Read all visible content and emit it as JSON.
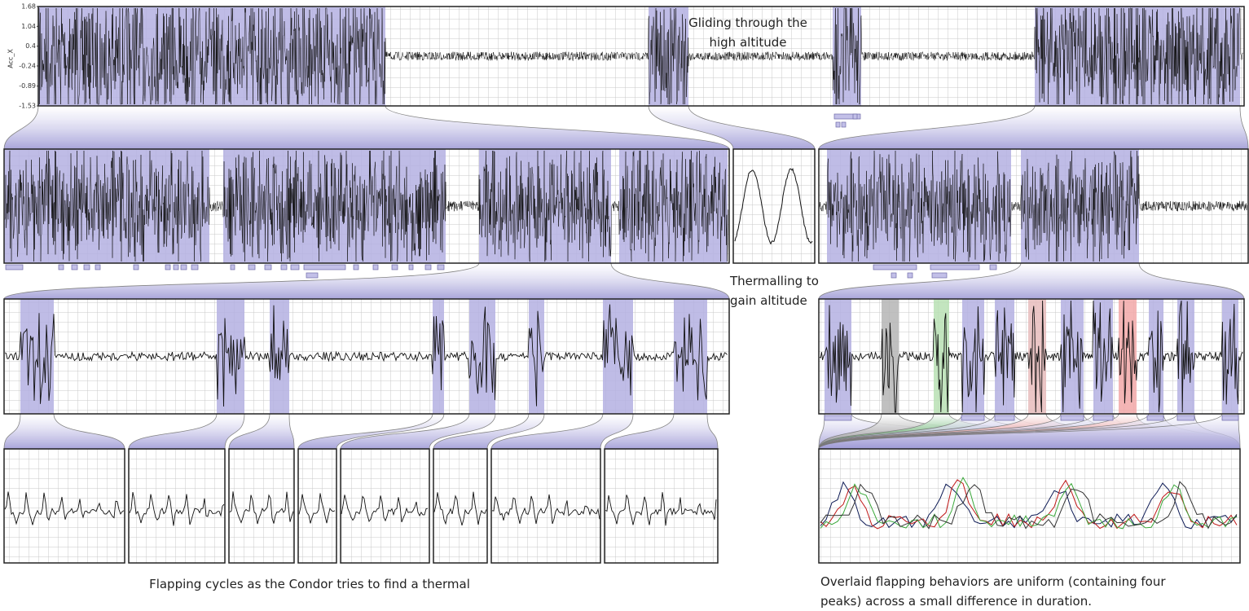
{
  "figure": {
    "y_axis_label": "Acc_X",
    "yticks": [
      1.68,
      1.04,
      0.4,
      -0.24,
      -0.89,
      -1.53
    ],
    "ylim": [
      -1.53,
      1.68
    ],
    "annotations": {
      "gliding": [
        "Gliding through the",
        "high altitude"
      ],
      "thermalling": [
        "Thermalling to",
        "gain altitude"
      ],
      "flapping": "Flapping cycles as the Condor tries to find a thermal",
      "overlaid": [
        "Overlaid flapping behaviors are uniform (containing four",
        "peaks) across a small difference in duration."
      ]
    }
  }
}
